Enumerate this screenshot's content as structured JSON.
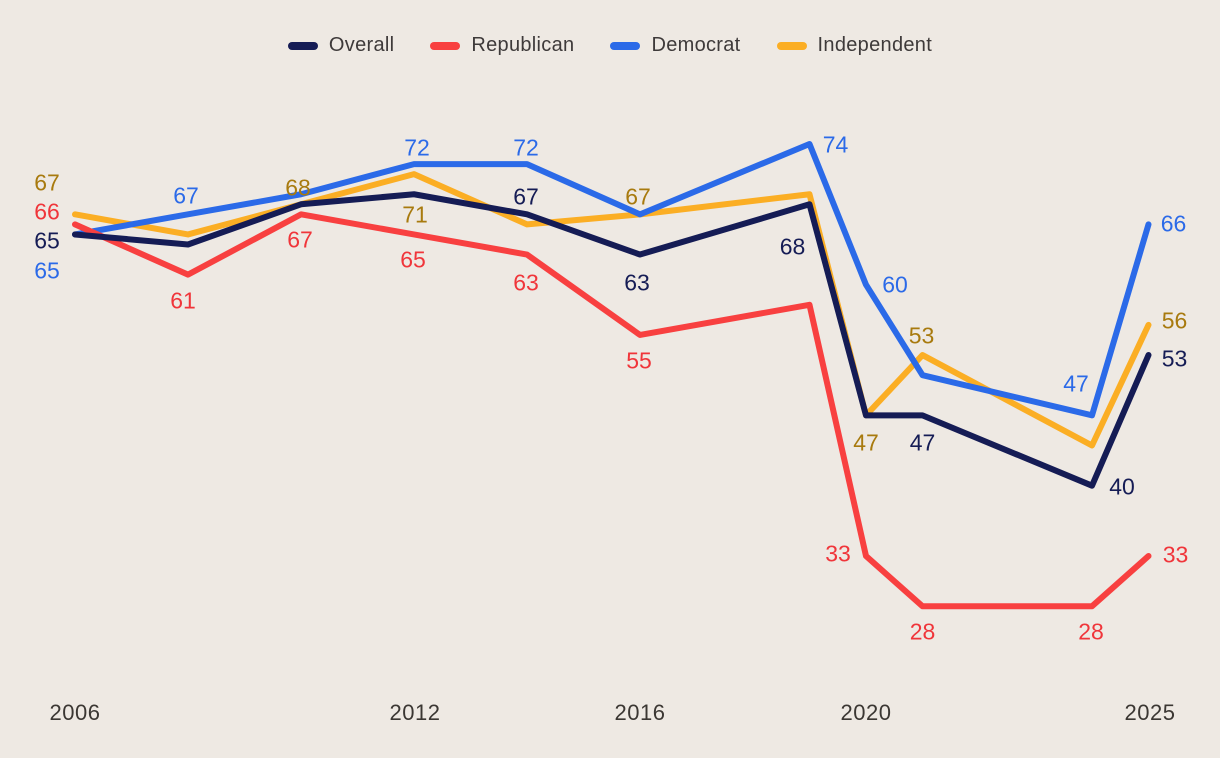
{
  "legend": {
    "items": [
      {
        "label": "Overall",
        "color": "#151C55"
      },
      {
        "label": "Republican",
        "color": "#F84040"
      },
      {
        "label": "Democrat",
        "color": "#2B6AE8"
      },
      {
        "label": "Independent",
        "color": "#FBAE24"
      }
    ]
  },
  "axis": {
    "x_ticks": [
      "2006",
      "2012",
      "2016",
      "2020",
      "2025"
    ]
  },
  "chart_data": {
    "type": "line",
    "title": "",
    "xlabel": "",
    "ylabel": "",
    "x": [
      2006,
      2008,
      2010,
      2012,
      2014,
      2016,
      2019,
      2020,
      2021,
      2024,
      2025
    ],
    "x_axis_ticks": [
      2006,
      2012,
      2016,
      2020,
      2025
    ],
    "ylim": [
      24,
      80
    ],
    "grid": false,
    "legend_position": "top-center",
    "series": [
      {
        "name": "Overall",
        "color": "#151C55",
        "label_color": "#151C55",
        "values": [
          65,
          64,
          68,
          69,
          67,
          63,
          68,
          47,
          47,
          40,
          53
        ],
        "point_labels": [
          {
            "year": 2006,
            "value": 65
          },
          {
            "year": 2014,
            "value": 67
          },
          {
            "year": 2016,
            "value": 63
          },
          {
            "year": 2019,
            "value": 68
          },
          {
            "year": 2021,
            "value": 47
          },
          {
            "year": 2024,
            "value": 40
          },
          {
            "year": 2025,
            "value": 53
          }
        ]
      },
      {
        "name": "Republican",
        "color": "#F84040",
        "label_color": "#F0353A",
        "values": [
          66,
          61,
          67,
          65,
          63,
          55,
          58,
          33,
          28,
          28,
          33
        ],
        "point_labels": [
          {
            "year": 2006,
            "value": 66
          },
          {
            "year": 2008,
            "value": 61
          },
          {
            "year": 2010,
            "value": 67
          },
          {
            "year": 2012,
            "value": 65
          },
          {
            "year": 2014,
            "value": 63
          },
          {
            "year": 2016,
            "value": 55
          },
          {
            "year": 2020,
            "value": 33
          },
          {
            "year": 2021,
            "value": 28
          },
          {
            "year": 2024,
            "value": 28
          },
          {
            "year": 2025,
            "value": 33
          }
        ]
      },
      {
        "name": "Democrat",
        "color": "#2B6AE8",
        "label_color": "#2B6AE8",
        "values": [
          65,
          67,
          69,
          72,
          72,
          67,
          74,
          60,
          51,
          47,
          66
        ],
        "point_labels": [
          {
            "year": 2006,
            "value": 65
          },
          {
            "year": 2008,
            "value": 67
          },
          {
            "year": 2012,
            "value": 72
          },
          {
            "year": 2014,
            "value": 72
          },
          {
            "year": 2019,
            "value": 74
          },
          {
            "year": 2020,
            "value": 60
          },
          {
            "year": 2024,
            "value": 47
          },
          {
            "year": 2025,
            "value": 66
          }
        ]
      },
      {
        "name": "Independent",
        "color": "#FBAE24",
        "label_color": "#A87A0E",
        "values": [
          67,
          65,
          68,
          71,
          66,
          67,
          69,
          47,
          53,
          44,
          56
        ],
        "point_labels": [
          {
            "year": 2006,
            "value": 67
          },
          {
            "year": 2010,
            "value": 68
          },
          {
            "year": 2012,
            "value": 71
          },
          {
            "year": 2016,
            "value": 67
          },
          {
            "year": 2020,
            "value": 47
          },
          {
            "year": 2021,
            "value": 53
          },
          {
            "year": 2025,
            "value": 56
          }
        ]
      }
    ]
  }
}
